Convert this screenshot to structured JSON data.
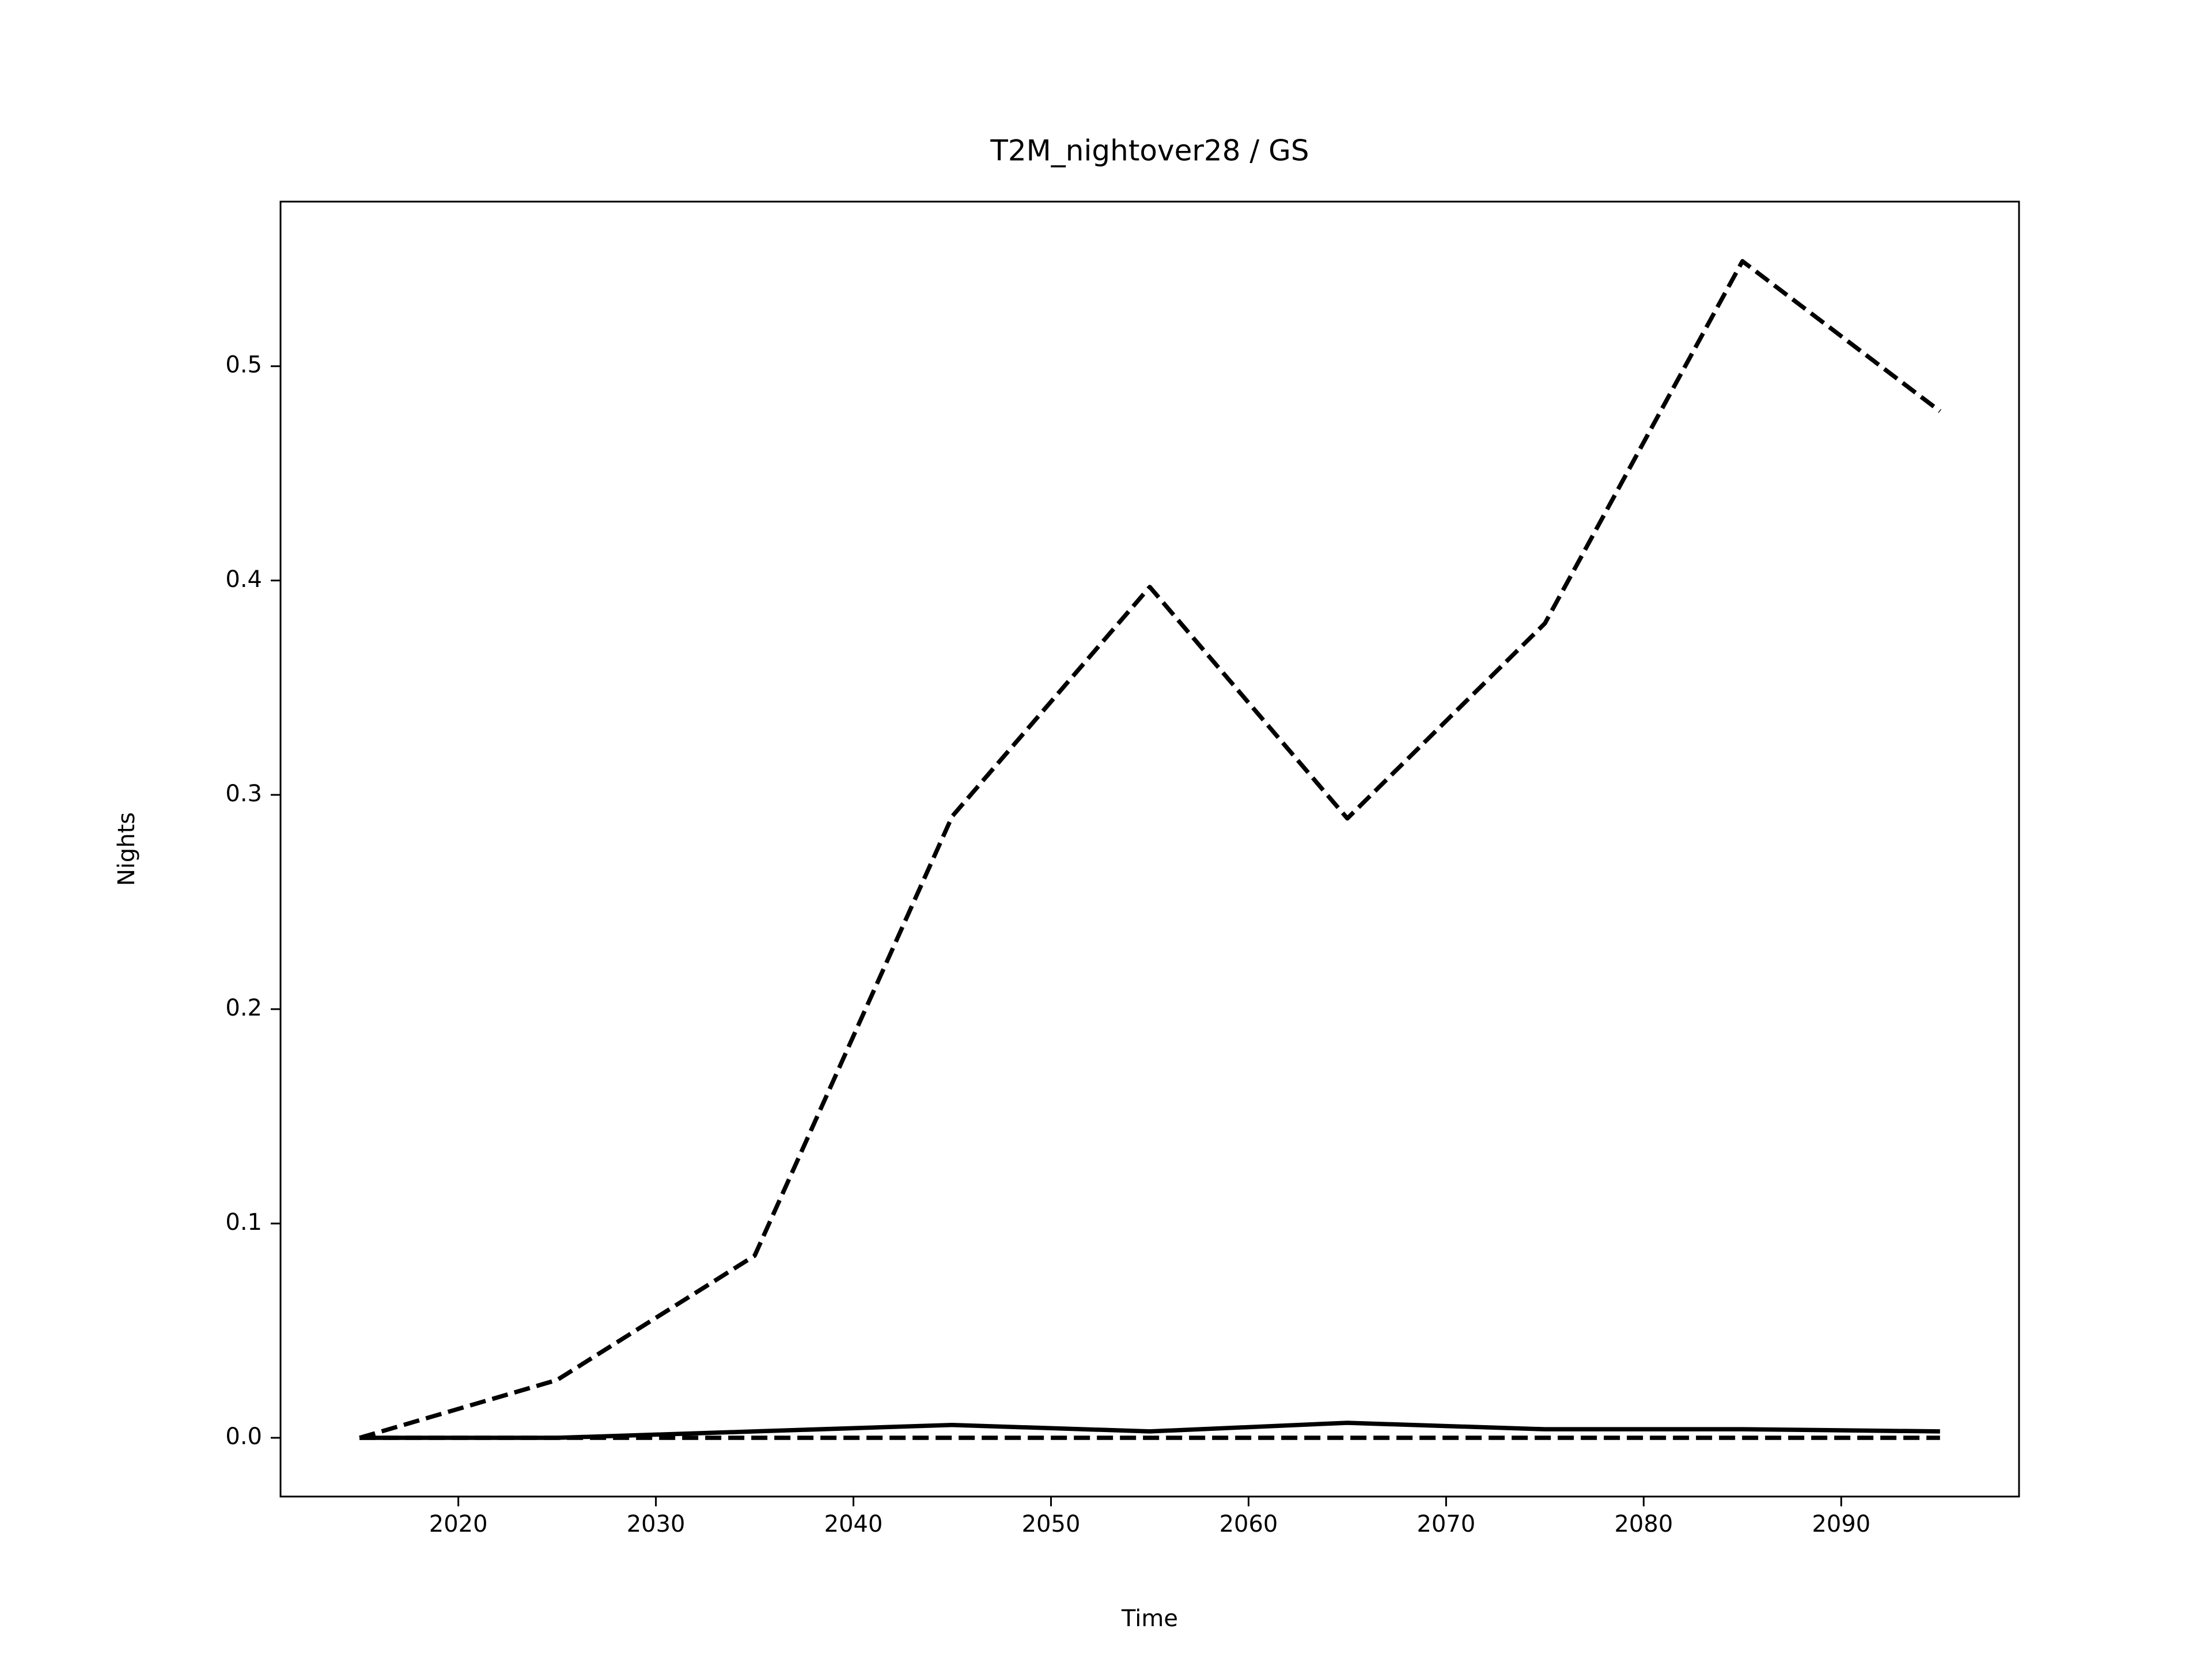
{
  "chart_data": {
    "type": "line",
    "title": "T2M_nightover28 / GS",
    "x_label": "Time",
    "y_label": "Nights",
    "x": [
      2015,
      2025,
      2035,
      2045,
      2055,
      2065,
      2075,
      2085,
      2095
    ],
    "series": [
      {
        "color": "#000000",
        "dashed": true,
        "values": [
          0,
          0.027,
          0.085,
          0.29,
          0.397,
          0.289,
          0.38,
          0.549,
          0.479
        ]
      },
      {
        "color": "#000000",
        "dashed": false,
        "values": [
          0,
          0,
          0.003,
          0.006,
          0.003,
          0.007,
          0.004,
          0.004,
          0.003
        ]
      },
      {
        "color": "#000000",
        "dashed": true,
        "values": [
          0,
          0,
          0,
          0,
          0,
          0,
          0,
          0,
          0
        ]
      }
    ],
    "xlim": [
      2011,
      2099
    ],
    "xticks": [
      2020,
      2030,
      2040,
      2050,
      2060,
      2070,
      2080,
      2090
    ],
    "ylim": [
      -0.0274,
      0.5768
    ],
    "yticks": [
      {
        "value": 0,
        "label": "0.0"
      },
      0.1,
      0.2,
      0.3,
      0.4,
      0.5
    ],
    "grid": false
  }
}
